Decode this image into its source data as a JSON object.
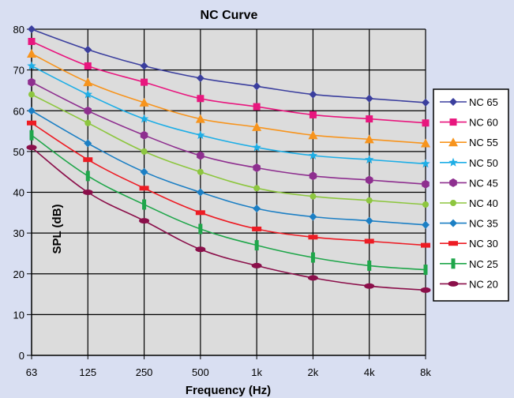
{
  "chart_data": {
    "type": "line",
    "title": "NC Curve",
    "xlabel": "Frequency (Hz)",
    "ylabel": "SPL (dB)",
    "categories": [
      "63",
      "125",
      "250",
      "500",
      "1k",
      "2k",
      "4k",
      "8k"
    ],
    "ylim": [
      0,
      80
    ],
    "yticks": [
      0,
      10,
      20,
      30,
      40,
      50,
      60,
      70,
      80
    ],
    "grid": true,
    "legend_position": "right",
    "series": [
      {
        "name": "NC 65",
        "color": "#3b3f9e",
        "marker": "diamond",
        "values": [
          80,
          75,
          71,
          68,
          66,
          64,
          63,
          62
        ]
      },
      {
        "name": "NC 60",
        "color": "#e8167e",
        "marker": "square",
        "values": [
          77,
          71,
          67,
          63,
          61,
          59,
          58,
          57
        ]
      },
      {
        "name": "NC 55",
        "color": "#f7941d",
        "marker": "triangle",
        "values": [
          74,
          67,
          62,
          58,
          56,
          54,
          53,
          52
        ]
      },
      {
        "name": "NC 50",
        "color": "#1eaee6",
        "marker": "star",
        "values": [
          71,
          64,
          58,
          54,
          51,
          49,
          48,
          47
        ]
      },
      {
        "name": "NC 45",
        "color": "#8e2f8f",
        "marker": "hexagon",
        "values": [
          67,
          60,
          54,
          49,
          46,
          44,
          43,
          42
        ]
      },
      {
        "name": "NC 40",
        "color": "#8dc63f",
        "marker": "circle",
        "values": [
          64,
          57,
          50,
          45,
          41,
          39,
          38,
          37
        ]
      },
      {
        "name": "NC 35",
        "color": "#1c7fc4",
        "marker": "diamond",
        "values": [
          60,
          52,
          45,
          40,
          36,
          34,
          33,
          32
        ]
      },
      {
        "name": "NC 30",
        "color": "#ed1c24",
        "marker": "dash",
        "values": [
          57,
          48,
          41,
          35,
          31,
          29,
          28,
          27
        ]
      },
      {
        "name": "NC 25",
        "color": "#1fa64a",
        "marker": "bar",
        "values": [
          54,
          44,
          37,
          31,
          27,
          24,
          22,
          21
        ]
      },
      {
        "name": "NC 20",
        "color": "#8b0f4a",
        "marker": "ellipse",
        "values": [
          51,
          40,
          33,
          26,
          22,
          19,
          17,
          16
        ]
      }
    ]
  }
}
